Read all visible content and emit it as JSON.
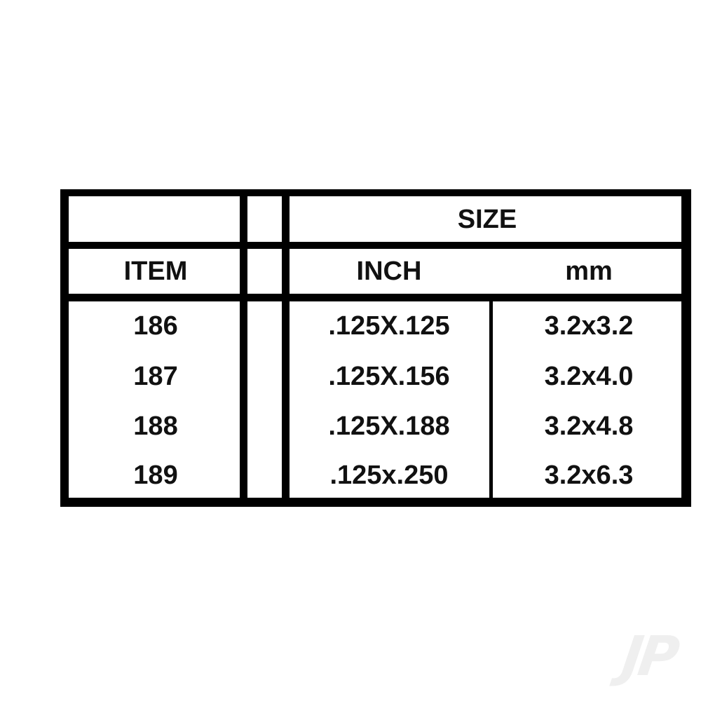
{
  "table": {
    "group_header": "SIZE",
    "columns": [
      "ITEM",
      "",
      "INCH",
      "mm"
    ],
    "rows": [
      {
        "item": "186",
        "inch": ".125X.125",
        "mm": "3.2x3.2"
      },
      {
        "item": "187",
        "inch": ".125X.156",
        "mm": "3.2x4.0"
      },
      {
        "item": "188",
        "inch": ".125X.188",
        "mm": "3.2x4.8"
      },
      {
        "item": "189",
        "inch": ".125x.250",
        "mm": "3.2x6.3"
      }
    ]
  },
  "watermark": {
    "logo_text": "JP"
  },
  "colors": {
    "border": "#000000",
    "text": "#111111",
    "background": "#ffffff"
  }
}
